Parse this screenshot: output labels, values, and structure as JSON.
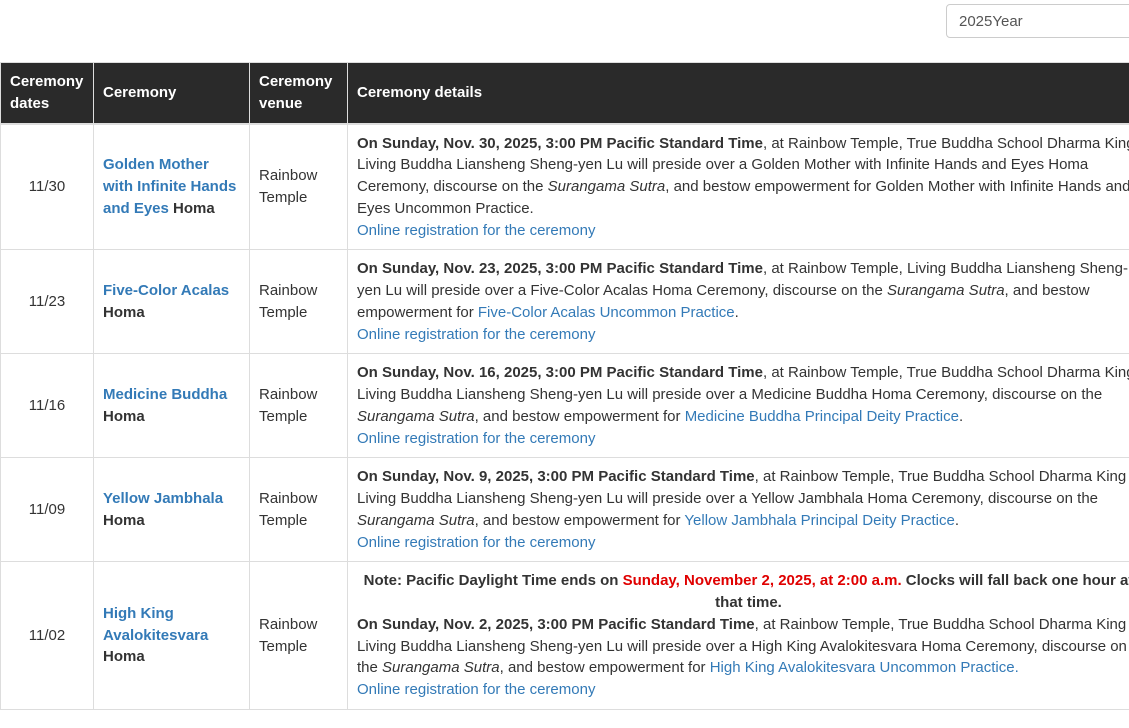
{
  "year_filter": {
    "value": "2025Year"
  },
  "colors": {
    "header_bg": "#2a2a2a",
    "link": "#337ab7",
    "note_red": "#e00000",
    "border": "#dddddd",
    "text": "#333333"
  },
  "table": {
    "headers": [
      "Ceremony dates",
      "Ceremony",
      "Ceremony venue",
      "Ceremony details"
    ],
    "rows": [
      {
        "date": "11/30",
        "ceremony": [
          {
            "t": "Golden Mother with Infinite Hands and Eyes",
            "s": "link b",
            "n": "ceremony-link"
          },
          {
            "t": " Homa",
            "s": "b"
          }
        ],
        "venue": "Rainbow Temple",
        "details": [
          {
            "runs": [
              {
                "t": "On Sunday, Nov. 30, 2025, 3:00 PM Pacific Standard Time",
                "s": "b"
              },
              {
                "t": ", at Rainbow Temple, True Buddha School Dharma King Living Buddha Liansheng Sheng-yen Lu will preside over a Golden Mother with Infinite Hands and Eyes Homa Ceremony, discourse on the ",
                "s": ""
              },
              {
                "t": "Surangama Sutra",
                "s": "i"
              },
              {
                "t": ", and bestow empowerment for Golden Mother with Infinite Hands and Eyes Uncommon Practice.",
                "s": ""
              }
            ]
          },
          {
            "runs": [
              {
                "t": "Online registration for the ceremony",
                "s": "link",
                "n": "registration-link"
              }
            ]
          }
        ]
      },
      {
        "date": "11/23",
        "ceremony": [
          {
            "t": "Five-Color Acalas",
            "s": "link b",
            "n": "ceremony-link"
          },
          {
            "t": " Homa",
            "s": "b"
          }
        ],
        "venue": "Rainbow Temple",
        "details": [
          {
            "runs": [
              {
                "t": "On Sunday, Nov. 23, 2025, 3:00 PM Pacific Standard Time",
                "s": "b"
              },
              {
                "t": ", at Rainbow Temple, Living Buddha Liansheng Sheng-yen Lu will preside over a Five-Color Acalas Homa Ceremony, discourse on the ",
                "s": ""
              },
              {
                "t": "Surangama Sutra",
                "s": "i"
              },
              {
                "t": ", and bestow empowerment for ",
                "s": ""
              },
              {
                "t": "Five-Color Acalas Uncommon Practice",
                "s": "link",
                "n": "practice-link"
              },
              {
                "t": ".",
                "s": ""
              }
            ]
          },
          {
            "runs": [
              {
                "t": "Online registration for the ceremony",
                "s": "link",
                "n": "registration-link"
              }
            ]
          }
        ]
      },
      {
        "date": "11/16",
        "ceremony": [
          {
            "t": "Medicine Buddha",
            "s": "link b",
            "n": "ceremony-link"
          },
          {
            "t": " Homa",
            "s": "b"
          }
        ],
        "venue": "Rainbow Temple",
        "details": [
          {
            "runs": [
              {
                "t": "On Sunday, Nov. 16, 2025, 3:00 PM Pacific Standard Time",
                "s": "b"
              },
              {
                "t": ", at Rainbow Temple, True Buddha School Dharma King Living Buddha Liansheng Sheng-yen Lu will preside over a Medicine Buddha Homa Ceremony, discourse on the ",
                "s": ""
              },
              {
                "t": "Surangama Sutra",
                "s": "i"
              },
              {
                "t": ", and bestow empowerment for ",
                "s": ""
              },
              {
                "t": "Medicine Buddha Principal Deity Practice",
                "s": "link",
                "n": "practice-link"
              },
              {
                "t": ".",
                "s": ""
              }
            ]
          },
          {
            "runs": [
              {
                "t": "Online registration for the ceremony",
                "s": "link",
                "n": "registration-link"
              }
            ]
          }
        ]
      },
      {
        "date": "11/09",
        "ceremony": [
          {
            "t": "Yellow Jambhala",
            "s": "link b",
            "n": "ceremony-link"
          },
          {
            "t": " Homa",
            "s": "b"
          }
        ],
        "venue": "Rainbow Temple",
        "details": [
          {
            "runs": [
              {
                "t": "On Sunday, Nov. 9, 2025, 3:00 PM Pacific Standard Time",
                "s": "b"
              },
              {
                "t": ", at Rainbow Temple, True Buddha School Dharma King Living Buddha Liansheng Sheng-yen Lu will preside over a Yellow Jambhala Homa Ceremony, discourse on the ",
                "s": ""
              },
              {
                "t": "Surangama Sutra",
                "s": "i"
              },
              {
                "t": ", and bestow empowerment for ",
                "s": ""
              },
              {
                "t": "Yellow Jambhala Principal Deity Practice",
                "s": "link",
                "n": "practice-link"
              },
              {
                "t": ".",
                "s": ""
              }
            ]
          },
          {
            "runs": [
              {
                "t": "Online registration for the ceremony",
                "s": "link",
                "n": "registration-link"
              }
            ]
          }
        ]
      },
      {
        "date": "11/02",
        "ceremony": [
          {
            "t": "High King Avalokitesvara",
            "s": "link b",
            "n": "ceremony-link"
          },
          {
            "t": " Homa",
            "s": "b"
          }
        ],
        "venue": "Rainbow Temple",
        "details": [
          {
            "note": true,
            "runs": [
              {
                "t": "Note: Pacific Daylight Time ends on ",
                "s": "b"
              },
              {
                "t": "Sunday, November 2, 2025, at 2:00 a.m.",
                "s": "b red"
              },
              {
                "t": " Clocks will fall back one hour at that time.",
                "s": "b"
              }
            ]
          },
          {
            "runs": [
              {
                "t": "On Sunday, Nov. 2, 2025, 3:00 PM Pacific Standard Time",
                "s": "b"
              },
              {
                "t": ", at Rainbow Temple, True Buddha School Dharma King Living Buddha Liansheng Sheng-yen Lu will preside over a High King Avalokitesvara Homa Ceremony, discourse on the ",
                "s": ""
              },
              {
                "t": "Surangama Sutra",
                "s": "i"
              },
              {
                "t": ", and bestow empowerment for ",
                "s": ""
              },
              {
                "t": "High King Avalokitesvara Uncommon Practice.",
                "s": "link",
                "n": "practice-link"
              }
            ]
          },
          {
            "runs": [
              {
                "t": "Online registration for the ceremony",
                "s": "link",
                "n": "registration-link"
              }
            ]
          }
        ]
      }
    ]
  }
}
